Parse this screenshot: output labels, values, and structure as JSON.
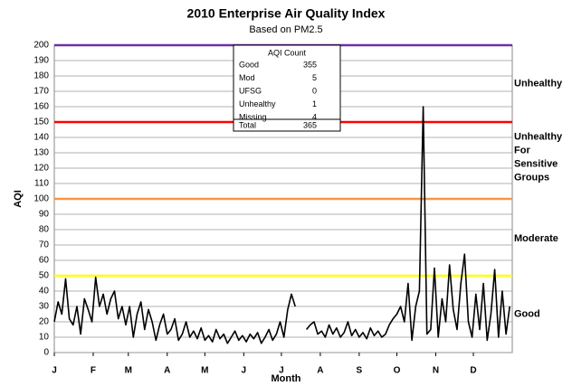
{
  "chart_data": {
    "type": "line",
    "title": "2010 Enterprise Air Quality Index",
    "subtitle": "Based on PM2.5",
    "x_label": "Month",
    "y_label": "AQI",
    "xlim": [
      1,
      366
    ],
    "xticks": [
      {
        "value": 1,
        "label": "J"
      },
      {
        "value": 32,
        "label": "F"
      },
      {
        "value": 60,
        "label": "M"
      },
      {
        "value": 91,
        "label": "A"
      },
      {
        "value": 121,
        "label": "M"
      },
      {
        "value": 152,
        "label": "J"
      },
      {
        "value": 182,
        "label": "J"
      },
      {
        "value": 213,
        "label": "A"
      },
      {
        "value": 244,
        "label": "S"
      },
      {
        "value": 274,
        "label": "O"
      },
      {
        "value": 305,
        "label": "N"
      },
      {
        "value": 335,
        "label": "D"
      }
    ],
    "ylim": [
      0,
      200
    ],
    "yticks": [
      0,
      10,
      20,
      30,
      40,
      50,
      60,
      70,
      80,
      90,
      100,
      110,
      120,
      130,
      140,
      150,
      160,
      170,
      180,
      190,
      200
    ],
    "grid": true,
    "x": [
      1,
      4,
      7,
      10,
      13,
      16,
      19,
      22,
      25,
      28,
      31,
      34,
      37,
      40,
      43,
      46,
      49,
      52,
      55,
      58,
      61,
      64,
      67,
      70,
      73,
      76,
      79,
      82,
      85,
      88,
      91,
      94,
      97,
      100,
      103,
      106,
      109,
      112,
      115,
      118,
      121,
      124,
      127,
      130,
      133,
      136,
      139,
      142,
      145,
      148,
      151,
      154,
      157,
      160,
      163,
      166,
      169,
      172,
      175,
      178,
      181,
      184,
      187,
      190,
      193,
      196,
      199,
      202,
      205,
      208,
      211,
      214,
      217,
      220,
      223,
      226,
      229,
      232,
      235,
      238,
      241,
      244,
      247,
      250,
      253,
      256,
      259,
      262,
      265,
      268,
      271,
      274,
      277,
      280,
      283,
      286,
      289,
      292,
      295,
      298,
      301,
      304,
      307,
      310,
      313,
      316,
      319,
      322,
      325,
      328,
      331,
      334,
      337,
      340,
      343,
      346,
      349,
      352,
      355,
      358,
      361,
      364
    ],
    "series": [
      {
        "color": "#000000",
        "values": [
          20,
          33,
          25,
          48,
          22,
          18,
          30,
          12,
          35,
          28,
          20,
          49,
          30,
          38,
          25,
          35,
          40,
          22,
          30,
          18,
          30,
          10,
          25,
          33,
          15,
          28,
          20,
          8,
          18,
          25,
          12,
          15,
          22,
          8,
          12,
          20,
          10,
          14,
          9,
          16,
          8,
          11,
          7,
          15,
          9,
          12,
          6,
          10,
          14,
          8,
          11,
          7,
          12,
          9,
          13,
          6,
          10,
          15,
          8,
          12,
          20,
          10,
          28,
          38,
          30,
          null,
          null,
          15,
          18,
          20,
          12,
          14,
          10,
          18,
          12,
          16,
          10,
          13,
          20,
          11,
          15,
          10,
          13,
          9,
          16,
          11,
          14,
          10,
          12,
          18,
          22,
          25,
          30,
          20,
          45,
          8,
          30,
          40,
          160,
          12,
          15,
          55,
          10,
          35,
          20,
          57,
          28,
          15,
          45,
          64,
          20,
          10,
          38,
          15,
          45,
          8,
          25,
          54,
          10,
          40,
          12,
          30
        ]
      }
    ],
    "thresholds": [
      {
        "value": 200,
        "color": "#7030a0"
      },
      {
        "value": 150,
        "color": "#ff0000"
      },
      {
        "value": 100,
        "color": "#f79646"
      },
      {
        "value": 50,
        "color": "#ffff00"
      }
    ],
    "zone_labels": [
      {
        "lines": [
          "Unhealthy"
        ],
        "at": 175
      },
      {
        "lines": [
          "Unhealthy",
          "For",
          "Sensitive",
          "Groups"
        ],
        "at": 127
      },
      {
        "lines": [
          "Moderate"
        ],
        "at": 74
      },
      {
        "lines": [
          "Good"
        ],
        "at": 25
      }
    ],
    "count_table": {
      "title": "AQI Count",
      "rows": [
        [
          "Good",
          "355"
        ],
        [
          "Mod",
          "5"
        ],
        [
          "UFSG",
          "0"
        ],
        [
          "Unhealthy",
          "1"
        ],
        [
          "Missing",
          "4"
        ]
      ],
      "total": [
        "Total",
        "365"
      ]
    }
  }
}
